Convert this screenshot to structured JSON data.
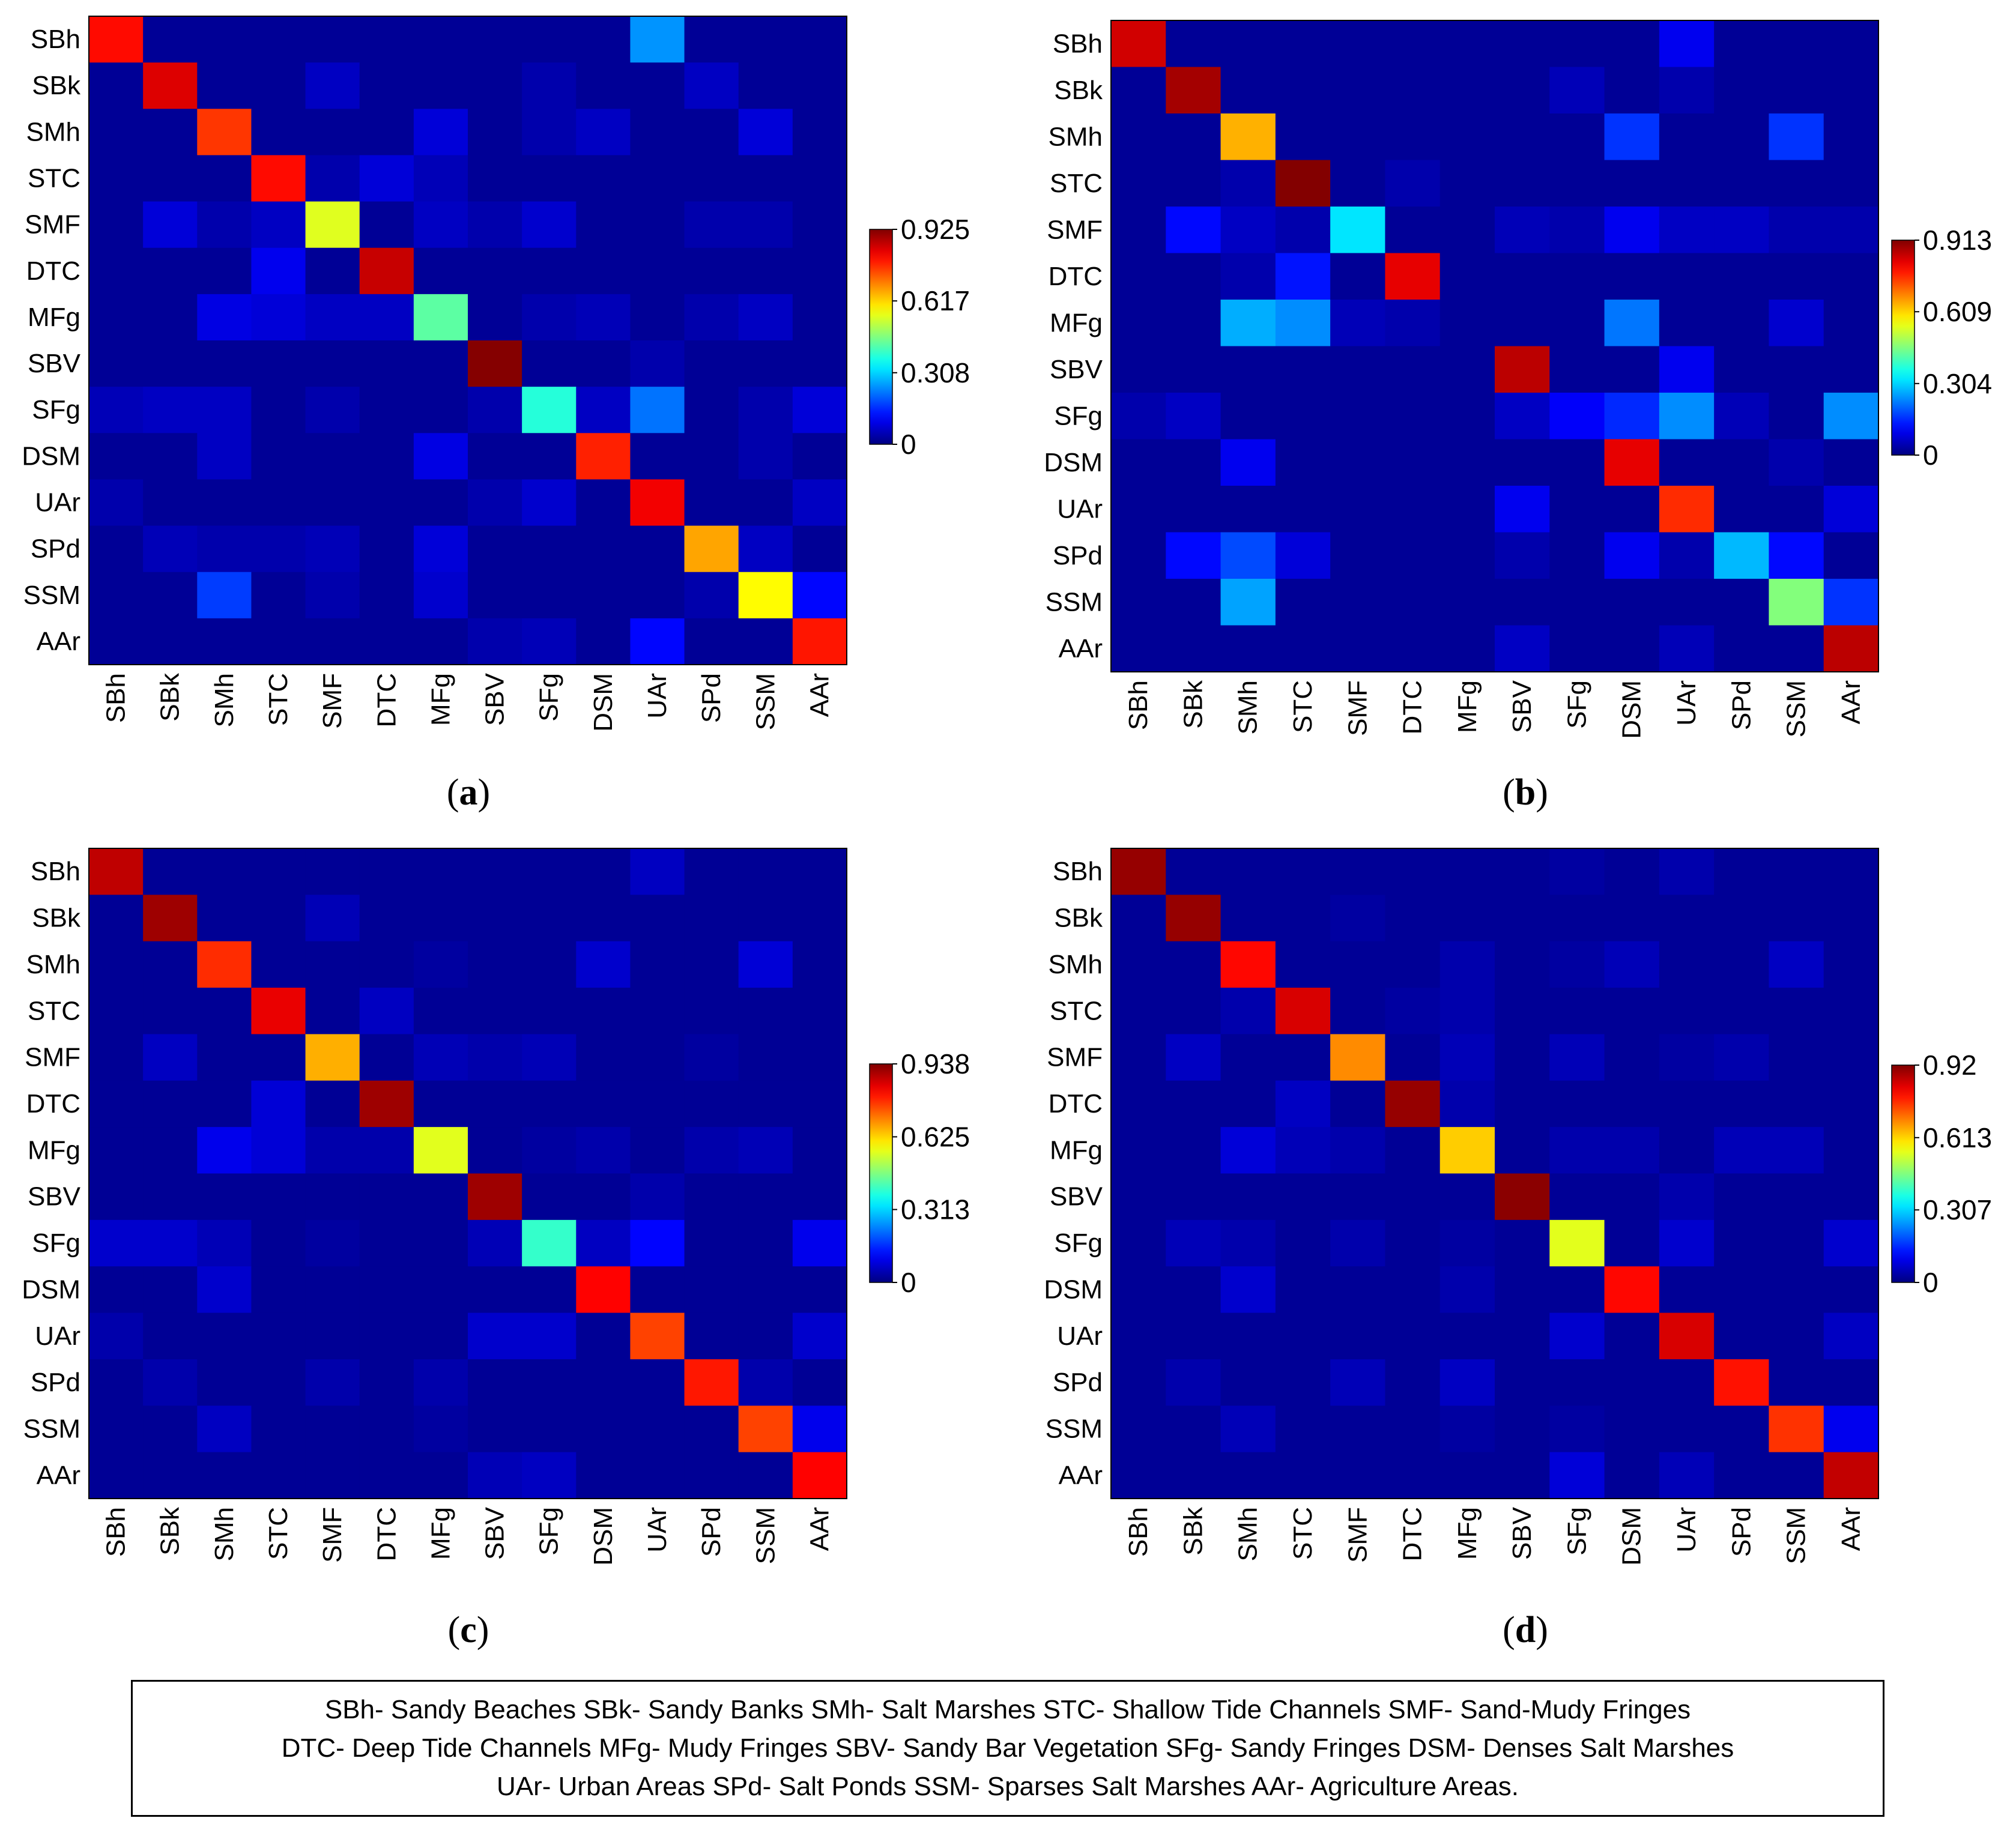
{
  "chart_data": [
    {
      "type": "heatmap",
      "caption": "(a)",
      "caption_letter": "a",
      "classes": [
        "SBh",
        "SBk",
        "SMh",
        "STC",
        "SMF",
        "DTC",
        "MFg",
        "SBV",
        "SFg",
        "DSM",
        "UAr",
        "SPd",
        "SSM",
        "AAr"
      ],
      "colorbar_ticks": [
        "0",
        "0.308",
        "0.617",
        "0.925"
      ],
      "colorbar_max": 0.925,
      "colormap": "jet",
      "values": [
        [
          0.8,
          0.02,
          0.02,
          0.02,
          0.02,
          0.02,
          0.02,
          0.02,
          0.02,
          0.02,
          0.25,
          0.02,
          0.02,
          0.02
        ],
        [
          0.02,
          0.84,
          0.02,
          0.02,
          0.06,
          0.02,
          0.02,
          0.02,
          0.04,
          0.02,
          0.02,
          0.06,
          0.02,
          0.02
        ],
        [
          0.02,
          0.02,
          0.76,
          0.02,
          0.02,
          0.02,
          0.08,
          0.02,
          0.04,
          0.06,
          0.02,
          0.02,
          0.08,
          0.02
        ],
        [
          0.02,
          0.02,
          0.02,
          0.8,
          0.04,
          0.08,
          0.05,
          0.02,
          0.02,
          0.02,
          0.02,
          0.02,
          0.02,
          0.02
        ],
        [
          0.02,
          0.08,
          0.04,
          0.06,
          0.55,
          0.02,
          0.06,
          0.04,
          0.07,
          0.02,
          0.02,
          0.04,
          0.04,
          0.02
        ],
        [
          0.02,
          0.02,
          0.02,
          0.1,
          0.02,
          0.86,
          0.02,
          0.02,
          0.02,
          0.02,
          0.02,
          0.02,
          0.02,
          0.02
        ],
        [
          0.02,
          0.02,
          0.09,
          0.08,
          0.06,
          0.06,
          0.43,
          0.02,
          0.04,
          0.05,
          0.02,
          0.04,
          0.06,
          0.02
        ],
        [
          0.02,
          0.02,
          0.02,
          0.02,
          0.02,
          0.02,
          0.02,
          0.92,
          0.02,
          0.02,
          0.04,
          0.02,
          0.02,
          0.02
        ],
        [
          0.05,
          0.06,
          0.06,
          0.02,
          0.04,
          0.02,
          0.02,
          0.04,
          0.38,
          0.06,
          0.22,
          0.02,
          0.04,
          0.08
        ],
        [
          0.02,
          0.02,
          0.06,
          0.02,
          0.02,
          0.02,
          0.09,
          0.02,
          0.02,
          0.78,
          0.02,
          0.02,
          0.04,
          0.02
        ],
        [
          0.04,
          0.02,
          0.02,
          0.02,
          0.02,
          0.02,
          0.02,
          0.04,
          0.07,
          0.02,
          0.82,
          0.02,
          0.02,
          0.06
        ],
        [
          0.02,
          0.05,
          0.04,
          0.04,
          0.05,
          0.02,
          0.08,
          0.02,
          0.02,
          0.02,
          0.02,
          0.66,
          0.06,
          0.02
        ],
        [
          0.02,
          0.02,
          0.17,
          0.02,
          0.04,
          0.02,
          0.07,
          0.02,
          0.02,
          0.02,
          0.02,
          0.04,
          0.58,
          0.12
        ],
        [
          0.02,
          0.02,
          0.02,
          0.02,
          0.02,
          0.02,
          0.02,
          0.04,
          0.05,
          0.02,
          0.12,
          0.02,
          0.02,
          0.79
        ]
      ]
    },
    {
      "type": "heatmap",
      "caption": "(b)",
      "caption_letter": "b",
      "classes": [
        "SBh",
        "SBk",
        "SMh",
        "STC",
        "SMF",
        "DTC",
        "MFg",
        "SBV",
        "SFg",
        "DSM",
        "UAr",
        "SPd",
        "SSM",
        "AAr"
      ],
      "colorbar_ticks": [
        "0",
        "0.304",
        "0.609",
        "0.913"
      ],
      "colorbar_max": 0.913,
      "colormap": "jet",
      "values": [
        [
          0.84,
          0.02,
          0.02,
          0.02,
          0.02,
          0.02,
          0.02,
          0.02,
          0.02,
          0.02,
          0.1,
          0.02,
          0.02,
          0.02
        ],
        [
          0.02,
          0.88,
          0.02,
          0.02,
          0.02,
          0.02,
          0.02,
          0.02,
          0.05,
          0.02,
          0.04,
          0.02,
          0.02,
          0.02
        ],
        [
          0.02,
          0.02,
          0.64,
          0.02,
          0.02,
          0.02,
          0.02,
          0.02,
          0.02,
          0.16,
          0.02,
          0.02,
          0.16,
          0.02
        ],
        [
          0.02,
          0.02,
          0.04,
          0.91,
          0.02,
          0.04,
          0.02,
          0.02,
          0.02,
          0.02,
          0.02,
          0.02,
          0.02,
          0.02
        ],
        [
          0.02,
          0.12,
          0.06,
          0.04,
          0.32,
          0.02,
          0.02,
          0.05,
          0.04,
          0.1,
          0.06,
          0.06,
          0.04,
          0.04
        ],
        [
          0.02,
          0.02,
          0.04,
          0.13,
          0.02,
          0.82,
          0.02,
          0.02,
          0.02,
          0.02,
          0.02,
          0.02,
          0.02,
          0.02
        ],
        [
          0.02,
          0.02,
          0.27,
          0.24,
          0.05,
          0.04,
          0.02,
          0.02,
          0.02,
          0.22,
          0.02,
          0.02,
          0.07,
          0.02
        ],
        [
          0.02,
          0.02,
          0.02,
          0.02,
          0.02,
          0.02,
          0.02,
          0.86,
          0.02,
          0.02,
          0.1,
          0.02,
          0.02,
          0.02
        ],
        [
          0.04,
          0.06,
          0.02,
          0.02,
          0.02,
          0.02,
          0.02,
          0.06,
          0.11,
          0.15,
          0.24,
          0.05,
          0.02,
          0.24
        ],
        [
          0.02,
          0.02,
          0.1,
          0.02,
          0.02,
          0.02,
          0.02,
          0.02,
          0.02,
          0.82,
          0.02,
          0.02,
          0.04,
          0.02
        ],
        [
          0.02,
          0.02,
          0.02,
          0.02,
          0.02,
          0.02,
          0.02,
          0.1,
          0.02,
          0.02,
          0.76,
          0.02,
          0.02,
          0.08
        ],
        [
          0.02,
          0.12,
          0.18,
          0.08,
          0.02,
          0.02,
          0.02,
          0.04,
          0.02,
          0.1,
          0.04,
          0.28,
          0.12,
          0.02
        ],
        [
          0.02,
          0.02,
          0.26,
          0.02,
          0.02,
          0.02,
          0.02,
          0.02,
          0.02,
          0.02,
          0.02,
          0.02,
          0.46,
          0.16
        ],
        [
          0.02,
          0.02,
          0.02,
          0.02,
          0.02,
          0.02,
          0.02,
          0.06,
          0.02,
          0.02,
          0.05,
          0.02,
          0.02,
          0.86
        ]
      ]
    },
    {
      "type": "heatmap",
      "caption": "(c)",
      "caption_letter": "c",
      "classes": [
        "SBh",
        "SBk",
        "SMh",
        "STC",
        "SMF",
        "DTC",
        "MFg",
        "SBV",
        "SFg",
        "DSM",
        "UAr",
        "SPd",
        "SSM",
        "AAr"
      ],
      "colorbar_ticks": [
        "0",
        "0.313",
        "0.625",
        "0.938"
      ],
      "colorbar_max": 0.938,
      "colormap": "jet",
      "values": [
        [
          0.88,
          0.02,
          0.02,
          0.02,
          0.02,
          0.02,
          0.02,
          0.02,
          0.02,
          0.02,
          0.06,
          0.02,
          0.02,
          0.02
        ],
        [
          0.02,
          0.91,
          0.02,
          0.02,
          0.05,
          0.02,
          0.02,
          0.02,
          0.02,
          0.02,
          0.02,
          0.02,
          0.02,
          0.02
        ],
        [
          0.02,
          0.02,
          0.78,
          0.02,
          0.02,
          0.02,
          0.03,
          0.02,
          0.02,
          0.07,
          0.02,
          0.02,
          0.08,
          0.02
        ],
        [
          0.02,
          0.02,
          0.02,
          0.84,
          0.02,
          0.06,
          0.02,
          0.02,
          0.02,
          0.02,
          0.02,
          0.02,
          0.02,
          0.02
        ],
        [
          0.02,
          0.06,
          0.02,
          0.02,
          0.66,
          0.02,
          0.05,
          0.04,
          0.05,
          0.02,
          0.02,
          0.03,
          0.02,
          0.02
        ],
        [
          0.02,
          0.02,
          0.02,
          0.08,
          0.02,
          0.91,
          0.02,
          0.02,
          0.02,
          0.02,
          0.02,
          0.02,
          0.02,
          0.02
        ],
        [
          0.02,
          0.02,
          0.1,
          0.08,
          0.04,
          0.04,
          0.56,
          0.02,
          0.03,
          0.04,
          0.02,
          0.04,
          0.05,
          0.02
        ],
        [
          0.02,
          0.02,
          0.02,
          0.02,
          0.02,
          0.02,
          0.02,
          0.91,
          0.02,
          0.02,
          0.04,
          0.02,
          0.02,
          0.02
        ],
        [
          0.07,
          0.07,
          0.05,
          0.02,
          0.03,
          0.02,
          0.02,
          0.05,
          0.4,
          0.06,
          0.12,
          0.02,
          0.02,
          0.1
        ],
        [
          0.02,
          0.02,
          0.07,
          0.02,
          0.02,
          0.02,
          0.02,
          0.02,
          0.02,
          0.82,
          0.02,
          0.02,
          0.02,
          0.02
        ],
        [
          0.04,
          0.02,
          0.02,
          0.02,
          0.02,
          0.02,
          0.02,
          0.07,
          0.07,
          0.02,
          0.76,
          0.02,
          0.02,
          0.07
        ],
        [
          0.02,
          0.04,
          0.02,
          0.02,
          0.04,
          0.02,
          0.04,
          0.02,
          0.02,
          0.02,
          0.02,
          0.8,
          0.04,
          0.02
        ],
        [
          0.02,
          0.02,
          0.06,
          0.02,
          0.02,
          0.02,
          0.03,
          0.02,
          0.02,
          0.02,
          0.02,
          0.02,
          0.76,
          0.1
        ],
        [
          0.02,
          0.02,
          0.02,
          0.02,
          0.02,
          0.02,
          0.02,
          0.05,
          0.06,
          0.02,
          0.02,
          0.02,
          0.02,
          0.82
        ]
      ]
    },
    {
      "type": "heatmap",
      "caption": "(d)",
      "caption_letter": "d",
      "classes": [
        "SBh",
        "SBk",
        "SMh",
        "STC",
        "SMF",
        "DTC",
        "MFg",
        "SBV",
        "SFg",
        "DSM",
        "UAr",
        "SPd",
        "SSM",
        "AAr"
      ],
      "colorbar_ticks": [
        "0",
        "0.307",
        "0.613",
        "0.92"
      ],
      "colorbar_max": 0.92,
      "colormap": "jet",
      "values": [
        [
          0.9,
          0.02,
          0.02,
          0.02,
          0.02,
          0.02,
          0.02,
          0.02,
          0.03,
          0.02,
          0.04,
          0.02,
          0.02,
          0.02
        ],
        [
          0.02,
          0.9,
          0.02,
          0.02,
          0.03,
          0.02,
          0.02,
          0.02,
          0.02,
          0.02,
          0.02,
          0.02,
          0.02,
          0.02
        ],
        [
          0.02,
          0.02,
          0.8,
          0.02,
          0.02,
          0.02,
          0.04,
          0.02,
          0.03,
          0.05,
          0.02,
          0.02,
          0.06,
          0.02
        ],
        [
          0.02,
          0.02,
          0.04,
          0.84,
          0.02,
          0.03,
          0.04,
          0.02,
          0.02,
          0.02,
          0.02,
          0.02,
          0.02,
          0.02
        ],
        [
          0.02,
          0.06,
          0.02,
          0.02,
          0.68,
          0.02,
          0.05,
          0.02,
          0.05,
          0.02,
          0.03,
          0.04,
          0.02,
          0.02
        ],
        [
          0.02,
          0.02,
          0.02,
          0.06,
          0.02,
          0.9,
          0.04,
          0.02,
          0.02,
          0.02,
          0.02,
          0.02,
          0.02,
          0.02
        ],
        [
          0.02,
          0.02,
          0.08,
          0.05,
          0.04,
          0.02,
          0.62,
          0.02,
          0.04,
          0.04,
          0.02,
          0.05,
          0.05,
          0.02
        ],
        [
          0.02,
          0.02,
          0.02,
          0.02,
          0.02,
          0.02,
          0.02,
          0.91,
          0.02,
          0.02,
          0.04,
          0.02,
          0.02,
          0.02
        ],
        [
          0.02,
          0.05,
          0.04,
          0.02,
          0.04,
          0.02,
          0.03,
          0.02,
          0.55,
          0.02,
          0.07,
          0.02,
          0.02,
          0.07
        ],
        [
          0.02,
          0.02,
          0.07,
          0.02,
          0.02,
          0.02,
          0.04,
          0.02,
          0.02,
          0.8,
          0.02,
          0.02,
          0.02,
          0.02
        ],
        [
          0.02,
          0.02,
          0.02,
          0.02,
          0.02,
          0.02,
          0.02,
          0.02,
          0.07,
          0.02,
          0.84,
          0.02,
          0.02,
          0.06
        ],
        [
          0.02,
          0.04,
          0.02,
          0.02,
          0.05,
          0.02,
          0.06,
          0.02,
          0.02,
          0.02,
          0.02,
          0.79,
          0.02,
          0.02
        ],
        [
          0.02,
          0.02,
          0.05,
          0.02,
          0.02,
          0.02,
          0.03,
          0.02,
          0.03,
          0.02,
          0.02,
          0.02,
          0.76,
          0.1
        ],
        [
          0.02,
          0.02,
          0.02,
          0.02,
          0.02,
          0.02,
          0.02,
          0.02,
          0.08,
          0.02,
          0.05,
          0.02,
          0.02,
          0.86
        ]
      ]
    }
  ],
  "legend": {
    "lines": [
      "SBh- Sandy Beaches SBk- Sandy Banks SMh- Salt Marshes STC- Shallow Tide Channels SMF- Sand-Mudy Fringes",
      "DTC- Deep Tide Channels MFg- Mudy Fringes SBV- Sandy Bar Vegetation SFg- Sandy Fringes DSM- Denses Salt Marshes",
      "UAr- Urban Areas SPd- Salt Ponds SSM- Sparses Salt Marshes AAr- Agriculture Areas."
    ]
  }
}
